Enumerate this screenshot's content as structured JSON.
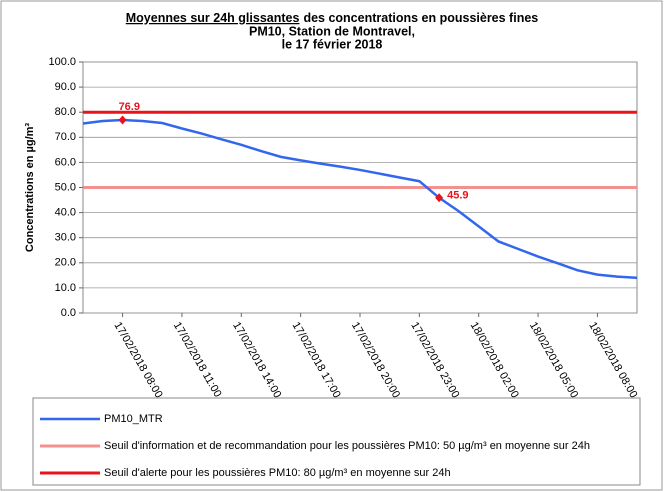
{
  "chart_data": {
    "type": "line",
    "title": [
      [
        "Moyennes sur 24h glissantes",
        "des concentrations en poussières fines"
      ],
      "PM10, Station de Montravel,",
      "le 17 février 2018"
    ],
    "y_label": "Concentrations en µg/m³",
    "categories": [
      null,
      null,
      "17/02/2018 08:00",
      null,
      null,
      "17/02/2018 11:00",
      null,
      null,
      "17/02/2018 14:00",
      null,
      null,
      "17/02/2018 17:00",
      null,
      null,
      "17/02/2018 20:00",
      null,
      null,
      "17/02/2018 23:00",
      null,
      null,
      "18/02/2018 02:00",
      null,
      null,
      "18/02/2018 05:00",
      null,
      null,
      "18/02/2018 08:00",
      null,
      null
    ],
    "series": [
      {
        "name": "PM10_MTR",
        "color": "#3366ee",
        "values": [
          75.5,
          76.5,
          76.9,
          76.5,
          75.7,
          73.5,
          71.5,
          69.2,
          67,
          64.5,
          62.2,
          60.8,
          59.5,
          58.3,
          57,
          55.5,
          54,
          52.5,
          45.9,
          40.5,
          34.5,
          28.5,
          25.5,
          22.5,
          19.8,
          17,
          15.3,
          14.5,
          14
        ],
        "highlighted": [
          2,
          18
        ],
        "highlight_color": "#e8141c"
      }
    ],
    "thresholds": [
      {
        "name": "Seuil d'information et de recommandation pour les poussières PM10: 50 µg/m³ en moyenne sur 24h",
        "color": "#f4908e",
        "value": 50
      },
      {
        "name": "Seuil d'alerte pour les poussières PM10: 80 µg/m³ en moyenne sur 24h",
        "color": "#e8141c",
        "value": 80
      }
    ],
    "ylim": [
      0,
      100
    ],
    "yticks": [
      {
        "value": 0,
        "label": "0.0"
      },
      {
        "value": 10,
        "label": "10.0"
      },
      {
        "value": 20,
        "label": "20.0"
      },
      {
        "value": 30,
        "label": "30.0"
      },
      {
        "value": 40,
        "label": "40.0"
      },
      {
        "value": 50,
        "label": "50.0"
      },
      {
        "value": 60,
        "label": "60.0"
      },
      {
        "value": 70,
        "label": "70.0"
      },
      {
        "value": 80,
        "label": "80.0"
      },
      {
        "value": 90,
        "label": "90.0"
      },
      {
        "value": 100,
        "label": "100.0"
      }
    ],
    "grid": true
  }
}
